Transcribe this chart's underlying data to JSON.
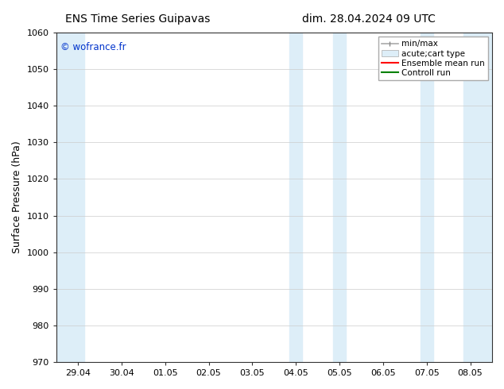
{
  "title_left": "ENS Time Series Guipavas",
  "title_right": "dim. 28.04.2024 09 UTC",
  "ylabel": "Surface Pressure (hPa)",
  "ylim": [
    970,
    1060
  ],
  "yticks": [
    970,
    980,
    990,
    1000,
    1010,
    1020,
    1030,
    1040,
    1050,
    1060
  ],
  "xtick_labels": [
    "29.04",
    "30.04",
    "01.05",
    "02.05",
    "03.05",
    "04.05",
    "05.05",
    "06.05",
    "07.05",
    "08.05"
  ],
  "watermark": "© wofrance.fr",
  "watermark_color": "#0033cc",
  "bg_color": "#ffffff",
  "plot_bg_color": "#ffffff",
  "shade_color": "#ddeef8",
  "n_xticks": 10,
  "legend_fontsize": 7.5,
  "title_fontsize": 10
}
